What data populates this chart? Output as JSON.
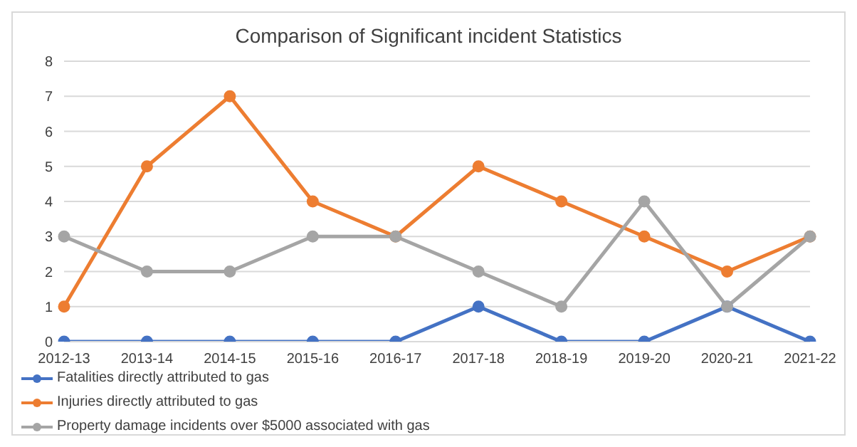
{
  "chart_data": {
    "type": "line",
    "title": "Comparison of Significant incident Statistics",
    "categories": [
      "2012-13",
      "2013-14",
      "2014-15",
      "2015-16",
      "2016-17",
      "2017-18",
      "2018-19",
      "2019-20",
      "2020-21",
      "2021-22"
    ],
    "series": [
      {
        "name": "Fatalities directly attributed to gas",
        "color": "#4472c4",
        "values": [
          0,
          0,
          0,
          0,
          0,
          1,
          0,
          0,
          1,
          0
        ]
      },
      {
        "name": "Injuries directly attributed to gas",
        "color": "#ed7d31",
        "values": [
          1,
          5,
          7,
          4,
          3,
          5,
          4,
          3,
          2,
          3
        ]
      },
      {
        "name": "Property damage incidents over $5000 associated with gas",
        "color": "#a5a5a5",
        "values": [
          3,
          2,
          2,
          3,
          3,
          2,
          1,
          4,
          1,
          3
        ]
      }
    ],
    "ylim": [
      0,
      8
    ],
    "yticks": [
      0,
      1,
      2,
      3,
      4,
      5,
      6,
      7,
      8
    ],
    "grid": "y",
    "legend": "bottom",
    "marker": "circle",
    "line_style": "solid"
  }
}
